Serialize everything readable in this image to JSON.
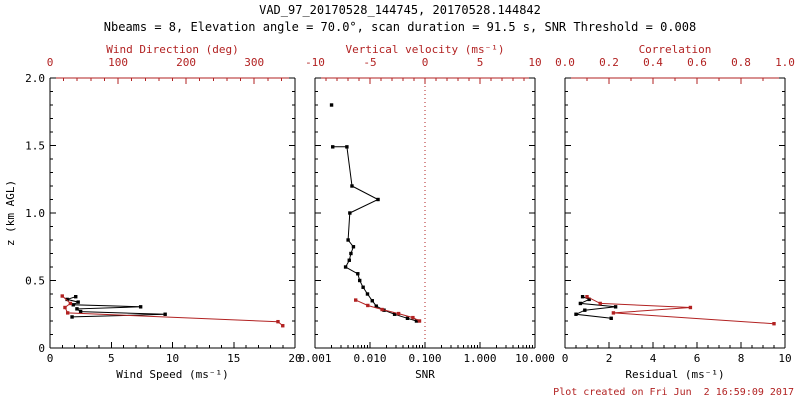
{
  "header": {
    "title": "VAD_97_20170528_144745, 20170528.144842",
    "subtitle": "Nbeams = 8, Elevation angle = 70.0°, scan duration = 91.5 s, SNR Threshold = 0.008"
  },
  "footer": {
    "created": "Plot created on Fri Jun  2 16:59:09 2017"
  },
  "colors": {
    "axis": "#000000",
    "accent": "#b22222",
    "background": "#ffffff"
  },
  "chart_data": [
    {
      "type": "line",
      "name": "wind-panel",
      "ylabel": "z (km AGL)",
      "ylim": [
        0,
        2.0
      ],
      "yticks": [
        0,
        0.5,
        1.0,
        1.5,
        2.0
      ],
      "ytick_labels": [
        "0",
        "0.5",
        "1.0",
        "1.5",
        "2.0"
      ],
      "show_ytick_labels": true,
      "bottom_axis": {
        "label": "Wind Speed (ms⁻¹)",
        "min": 0,
        "max": 20,
        "ticks": [
          0,
          5,
          10,
          15,
          20
        ],
        "minor": 5,
        "color": "#000000"
      },
      "top_axis": {
        "label": "Wind Direction (deg)",
        "min": 0,
        "max": 360,
        "ticks": [
          0,
          100,
          200,
          300
        ],
        "minor": 5,
        "color": "#b22222"
      },
      "series": [
        {
          "name": "wind-speed",
          "axis": "bottom",
          "color": "#000000",
          "points": [
            [
              2.1,
              0.38
            ],
            [
              1.4,
              0.36
            ],
            [
              2.3,
              0.34
            ],
            [
              1.9,
              0.32
            ],
            [
              7.4,
              0.305
            ],
            [
              2.2,
              0.29
            ],
            [
              2.5,
              0.27
            ],
            [
              9.4,
              0.25
            ],
            [
              1.8,
              0.23
            ]
          ]
        },
        {
          "name": "wind-direction",
          "axis": "top",
          "color": "#b22222",
          "points": [
            [
              18,
              0.385
            ],
            [
              30,
              0.33
            ],
            [
              22,
              0.3
            ],
            [
              26,
              0.26
            ],
            [
              335,
              0.195
            ],
            [
              342,
              0.165
            ]
          ]
        }
      ]
    },
    {
      "type": "line",
      "name": "snr-panel",
      "ylim": [
        0,
        2.0
      ],
      "yticks": [
        0,
        0.5,
        1.0,
        1.5,
        2.0
      ],
      "show_ytick_labels": false,
      "bottom_axis": {
        "label": "SNR",
        "min": 0.001,
        "max": 10,
        "scale": "log",
        "ticks": [
          0.001,
          0.01,
          0.1,
          1,
          10
        ],
        "tick_labels": [
          "0.001",
          "0.010",
          "0.100",
          "1.000",
          "10.000"
        ],
        "color": "#000000"
      },
      "top_axis": {
        "label": "Vertical velocity (ms⁻¹)",
        "min": -10,
        "max": 10,
        "ticks": [
          -10,
          -5,
          0,
          5,
          10
        ],
        "minor": 5,
        "color": "#b22222"
      },
      "refline": {
        "axis": "top",
        "value": 0,
        "color": "#b22222",
        "style": "dotted"
      },
      "series": [
        {
          "name": "snr",
          "axis": "bottom",
          "color": "#000000",
          "points": [
            [
              0.002,
              1.8
            ],
            null,
            [
              0.0021,
              1.49
            ],
            [
              0.0038,
              1.49
            ],
            [
              0.0047,
              1.2
            ],
            [
              0.014,
              1.1
            ],
            [
              0.0043,
              1.0
            ],
            [
              0.004,
              0.8
            ],
            [
              0.005,
              0.75
            ],
            [
              0.0045,
              0.7
            ],
            [
              0.0042,
              0.65
            ],
            [
              0.0036,
              0.6
            ],
            [
              0.006,
              0.55
            ],
            [
              0.0065,
              0.5
            ],
            [
              0.0075,
              0.45
            ],
            [
              0.009,
              0.4
            ],
            [
              0.011,
              0.35
            ],
            [
              0.013,
              0.31
            ],
            [
              0.018,
              0.28
            ],
            [
              0.028,
              0.25
            ],
            [
              0.048,
              0.22
            ],
            [
              0.07,
              0.2
            ]
          ]
        },
        {
          "name": "vertical-velocity",
          "axis": "top",
          "color": "#b22222",
          "points": [
            [
              -6.3,
              0.355
            ],
            [
              -5.2,
              0.315
            ],
            [
              -3.9,
              0.285
            ],
            [
              -2.4,
              0.255
            ],
            [
              -1.1,
              0.225
            ],
            [
              -0.5,
              0.2
            ]
          ]
        }
      ]
    },
    {
      "type": "line",
      "name": "residual-panel",
      "ylim": [
        0,
        2.0
      ],
      "yticks": [
        0,
        0.5,
        1.0,
        1.5,
        2.0
      ],
      "show_ytick_labels": false,
      "bottom_axis": {
        "label": "Residual (ms⁻¹)",
        "min": 0,
        "max": 10,
        "ticks": [
          0,
          2,
          4,
          6,
          8,
          10
        ],
        "minor": 4,
        "color": "#000000"
      },
      "top_axis": {
        "label": "Correlation",
        "min": 0,
        "max": 1,
        "ticks": [
          0,
          0.2,
          0.4,
          0.6,
          0.8,
          1
        ],
        "tick_labels": [
          "0.0",
          "0.2",
          "0.4",
          "0.6",
          "0.8",
          "1.0"
        ],
        "minor": 2,
        "color": "#b22222"
      },
      "series": [
        {
          "name": "residual",
          "axis": "bottom",
          "color": "#000000",
          "points": [
            [
              0.8,
              0.38
            ],
            [
              1.1,
              0.36
            ],
            [
              0.7,
              0.33
            ],
            [
              2.3,
              0.305
            ],
            [
              0.9,
              0.28
            ],
            [
              0.5,
              0.25
            ],
            [
              2.1,
              0.22
            ]
          ]
        },
        {
          "name": "correlation",
          "axis": "top",
          "color": "#b22222",
          "points": [
            [
              0.1,
              0.38
            ],
            [
              0.16,
              0.33
            ],
            [
              0.57,
              0.3
            ],
            [
              0.22,
              0.26
            ],
            [
              0.95,
              0.18
            ]
          ]
        }
      ]
    }
  ]
}
